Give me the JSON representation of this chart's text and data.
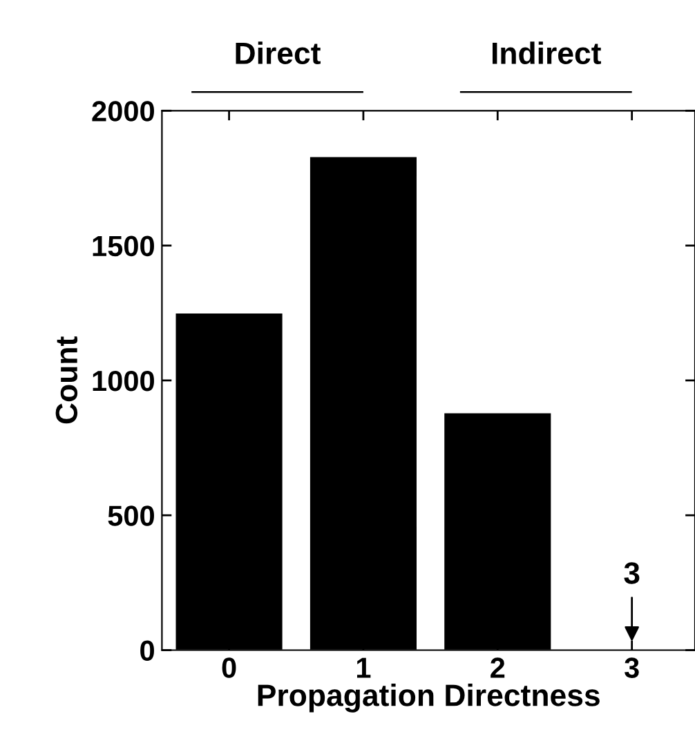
{
  "chart_data": {
    "type": "bar",
    "xlabel": "Propagation Directness",
    "ylabel": "Count",
    "categories": [
      "0",
      "1",
      "2",
      "3"
    ],
    "values": [
      1250,
      1830,
      880,
      3
    ],
    "value_labels": [
      null,
      null,
      null,
      "3"
    ],
    "color": "#000000",
    "ylim": [
      0,
      2000
    ],
    "yticks": [
      0,
      500,
      1000,
      1500,
      2000
    ],
    "annotations": [
      "Direct",
      "Indirect"
    ],
    "grid": false
  }
}
